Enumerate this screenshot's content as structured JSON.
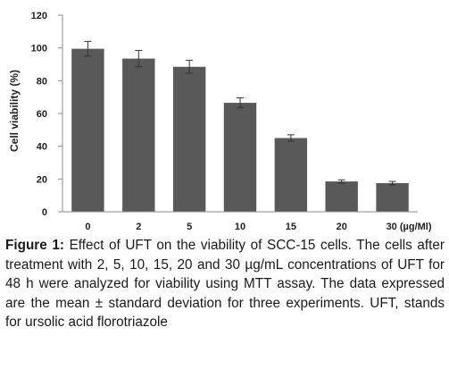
{
  "chart_data": {
    "type": "bar",
    "categories": [
      "0",
      "2",
      "5",
      "10",
      "15",
      "20",
      "30 (µg/Ml)"
    ],
    "values": [
      99.5,
      93.5,
      88.5,
      66.5,
      45,
      18.5,
      17.5
    ],
    "errors": [
      4.5,
      5,
      4,
      3,
      2,
      1,
      1
    ],
    "xlabel": "",
    "ylabel": "Cell viability (%)",
    "ylim": [
      0,
      120
    ],
    "yticks": [
      0,
      20,
      40,
      60,
      80,
      100,
      120
    ],
    "grid": false,
    "colors": {
      "bar": "#595959",
      "axis": "#8c8c8c",
      "error": "#333333"
    }
  },
  "caption": {
    "label": "Figure 1:",
    "text": "Effect of UFT on the viability of SCC-15 cells. The cells after treatment with 2, 5, 10, 15, 20 and 30 µg/mL concentrations of UFT for 48 h were analyzed for viability using MTT assay. The data expressed are the mean ± standard deviation for three experiments. UFT, stands for ursolic acid florotriazole"
  }
}
